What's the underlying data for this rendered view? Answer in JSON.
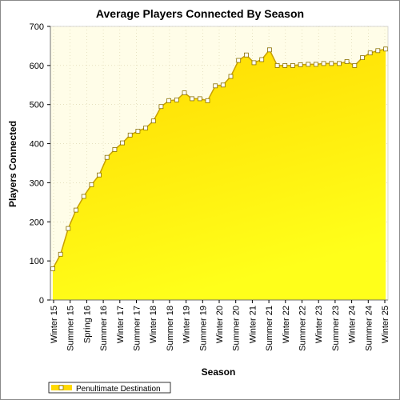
{
  "chart_data": {
    "type": "area",
    "title": "Average Players Connected By Season",
    "xlabel": "Season",
    "ylabel": "Players Connected",
    "ylim": [
      0,
      700
    ],
    "yticks": [
      0,
      100,
      200,
      300,
      400,
      500,
      600,
      700
    ],
    "grid": true,
    "legend_position": "bottom-left",
    "colors": {
      "fill_top": "#ffd900",
      "fill_bottom": "#ffff1a",
      "line": "#c8a000",
      "background": "#fffde8",
      "marker": "#ffffff"
    },
    "xticks": [
      "Winter 15",
      "Summer 15",
      "Spring 16",
      "Summer 16",
      "Winter 17",
      "Summer 17",
      "Winter 18",
      "Summer 18",
      "Winter 19",
      "Summer 19",
      "Winter 20",
      "Summer 20",
      "Winter 21",
      "Summer 21",
      "Winter 22",
      "Summer 22",
      "Winter 23",
      "Summer 23",
      "Winter 24",
      "Summer 24",
      "Winter 25"
    ],
    "series": [
      {
        "name": "Penultimate Destination",
        "values": [
          80,
          117,
          183,
          230,
          265,
          295,
          320,
          365,
          385,
          402,
          422,
          432,
          440,
          458,
          495,
          510,
          512,
          530,
          515,
          515,
          510,
          548,
          550,
          572,
          613,
          627,
          607,
          615,
          640,
          600,
          600,
          600,
          602,
          603,
          603,
          605,
          605,
          605,
          610,
          600,
          620,
          632,
          638,
          642
        ]
      }
    ]
  }
}
